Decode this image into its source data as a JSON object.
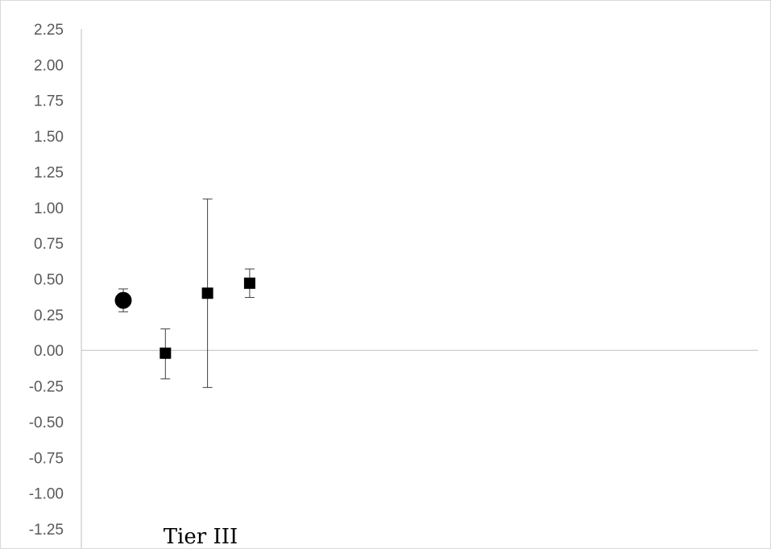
{
  "chart_data": {
    "type": "scatter",
    "title": "",
    "xlabel": "",
    "ylabel": "",
    "ylim": [
      -1.25,
      2.25
    ],
    "yticks": [
      "2.25",
      "2.00",
      "1.75",
      "1.50",
      "1.25",
      "1.00",
      "0.75",
      "0.50",
      "0.25",
      "0.00",
      "-0.25",
      "-0.50",
      "-0.75",
      "-1.00",
      "-1.25"
    ],
    "category_label": "Tier III",
    "grid": false,
    "legend": "none",
    "zero_line": true,
    "series": [
      {
        "marker": "circle",
        "points": [
          {
            "x": 1,
            "y": 0.35,
            "low": 0.27,
            "high": 0.43
          }
        ]
      },
      {
        "marker": "square",
        "points": [
          {
            "x": 2,
            "y": -0.02,
            "low": -0.2,
            "high": 0.15
          },
          {
            "x": 3,
            "y": 0.4,
            "low": -0.26,
            "high": 1.06
          },
          {
            "x": 4,
            "y": 0.47,
            "low": 0.37,
            "high": 0.57
          }
        ]
      }
    ],
    "colors": {
      "marker": "#000000",
      "axis": "#bfbfbf",
      "error_bar": "#404040",
      "tick_text": "#595959"
    }
  }
}
